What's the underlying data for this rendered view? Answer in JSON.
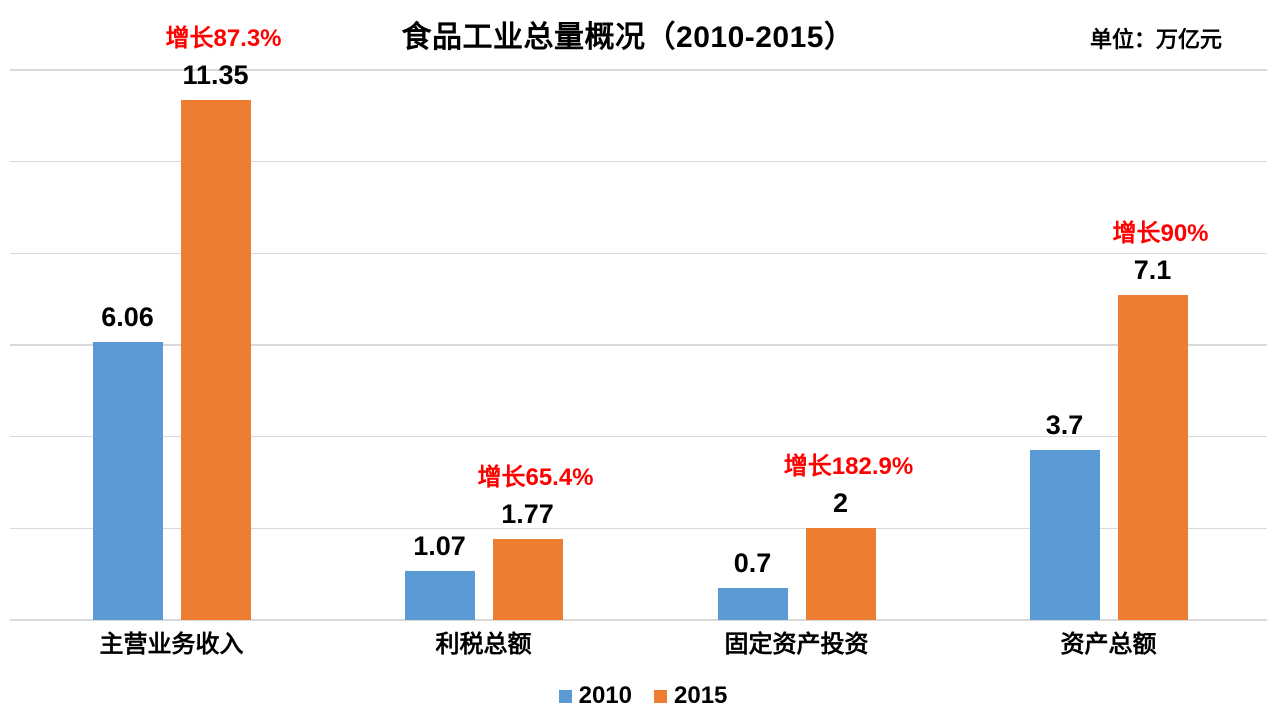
{
  "title": "食品工业总量概况（2010-2015）",
  "unit_label": "单位：万亿元",
  "colors": {
    "series_2010": "#5B9BD5",
    "series_2015": "#ED7D31",
    "growth_text": "#FF0000",
    "gridline": "#D9D9D9",
    "text": "#000000",
    "background": "#FFFFFF"
  },
  "legend": [
    {
      "label": "2010",
      "color": "#5B9BD5"
    },
    {
      "label": "2015",
      "color": "#ED7D31"
    }
  ],
  "chart_data": {
    "type": "bar",
    "title": "食品工业总量概况（2010-2015）",
    "unit": "万亿元",
    "categories": [
      "主营业务收入",
      "利税总额",
      "固定资产投资",
      "资产总额"
    ],
    "series": [
      {
        "name": "2010",
        "color": "#5B9BD5",
        "values": [
          6.06,
          1.07,
          0.7,
          3.7
        ],
        "labels": [
          "6.06",
          "1.07",
          "0.7",
          "3.7"
        ]
      },
      {
        "name": "2015",
        "color": "#ED7D31",
        "values": [
          11.35,
          1.77,
          2,
          7.1
        ],
        "labels": [
          "11.35",
          "1.77",
          "2",
          "7.1"
        ]
      }
    ],
    "growth_labels": [
      "增长87.3%",
      "增长65.4%",
      "增长182.9%",
      "增长90%"
    ],
    "ylabel": "",
    "xlabel": "",
    "ylim": [
      0,
      12
    ],
    "grid_step": 2,
    "grid": true,
    "y_axis_labels_visible": false,
    "legend_position": "bottom"
  }
}
